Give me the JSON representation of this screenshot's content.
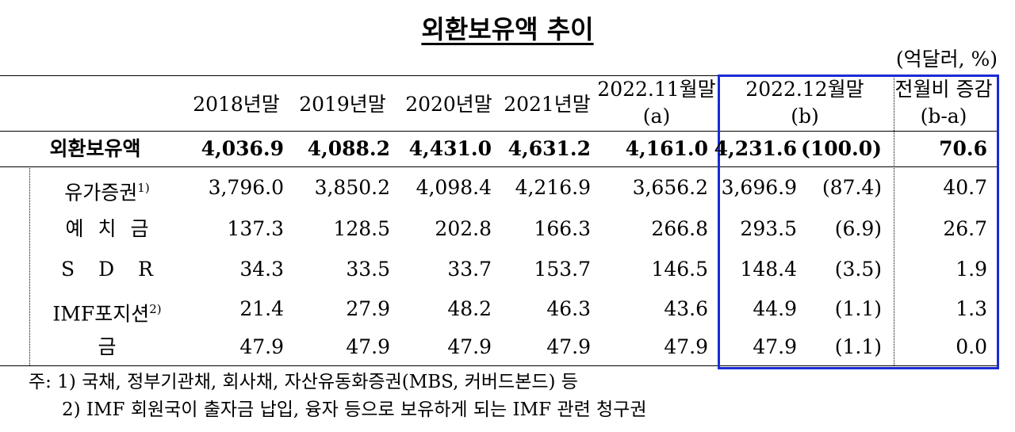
{
  "title": "외환보유액 추이",
  "unit": "(억달러, %)",
  "header": [
    {
      "label": "2018년말"
    },
    {
      "label": "2019년말"
    },
    {
      "label": "2020년말"
    },
    {
      "label": "2021년말"
    },
    {
      "label": "2022.11월말",
      "sub": "(a)"
    },
    {
      "label": "2022.12월말",
      "sub": "(b)"
    },
    {
      "label": "전월비 증감",
      "sub": "(b-a)"
    }
  ],
  "rows": [
    {
      "label": "외환보유액",
      "values": [
        "4,036.9",
        "4,088.2",
        "4,431.0",
        "4,631.2",
        "4,161.0",
        "4,231.6"
      ],
      "share": "(100.0)",
      "change": "70.6"
    },
    {
      "label": "유가증권",
      "note": "1)",
      "values": [
        "3,796.0",
        "3,850.2",
        "4,098.4",
        "4,216.9",
        "3,656.2",
        "3,696.9"
      ],
      "share": "(87.4)",
      "change": "40.7"
    },
    {
      "label": "예 치 금",
      "values": [
        "137.3",
        "128.5",
        "202.8",
        "166.3",
        "266.8",
        "293.5"
      ],
      "share": "(6.9)",
      "change": "26.7"
    },
    {
      "label": "S D R",
      "values": [
        "34.3",
        "33.5",
        "33.7",
        "153.7",
        "146.5",
        "148.4"
      ],
      "share": "(3.5)",
      "change": "1.9"
    },
    {
      "label": "IMF포지션",
      "note": "2)",
      "values": [
        "21.4",
        "27.9",
        "48.2",
        "46.3",
        "43.6",
        "44.9"
      ],
      "share": "(1.1)",
      "change": "1.3"
    },
    {
      "label": "금",
      "values": [
        "47.9",
        "47.9",
        "47.9",
        "47.9",
        "47.9",
        "47.9"
      ],
      "share": "(1.1)",
      "change": "0.0"
    }
  ],
  "footnotes": [
    "주: 1) 국채, 정부기관채, 회사채, 자산유동화증권(MBS, 커버드본드) 등",
    "2) IMF 회원국이 출자금 납입, 융자 등으로 보유하게 되는 IMF 관련 청구권"
  ]
}
